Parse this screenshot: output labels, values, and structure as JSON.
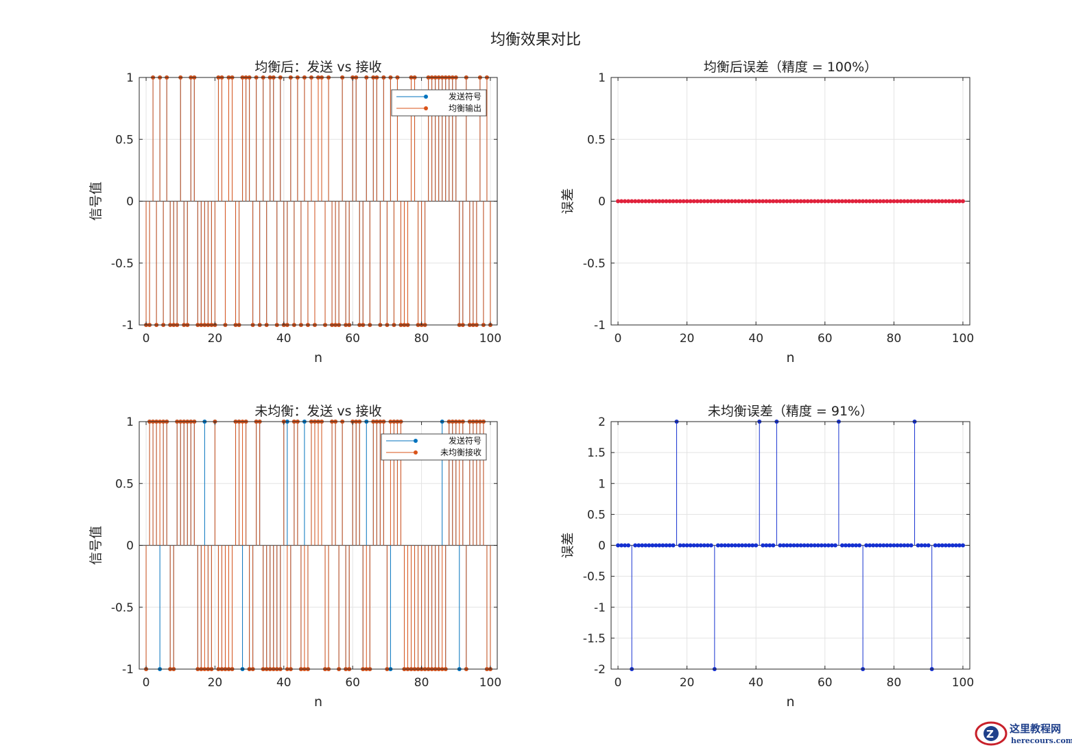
{
  "figure": {
    "suptitle": "均衡效果对比",
    "watermark": {
      "main": "这里教程网",
      "sub": "herecours.com"
    }
  },
  "colors": {
    "series_blue": "#0072BD",
    "series_orange": "#D95319",
    "error_red": "#E0223C",
    "error_blue": "#1530D0",
    "grid": "#e3e3e3",
    "axis": "#262626"
  },
  "chart_data": [
    {
      "id": "tl",
      "type": "stem",
      "title": "均衡后：发送 vs 接收",
      "xlabel": "n",
      "ylabel": "信号值",
      "xlim": [
        -2,
        102
      ],
      "ylim": [
        -1,
        1
      ],
      "xticks": [
        0,
        20,
        40,
        60,
        80,
        100
      ],
      "yticks": [
        -1,
        -0.5,
        0,
        0.5,
        1
      ],
      "grid": true,
      "legend": {
        "position": "top-right",
        "entries": [
          "发送符号",
          "均衡输出"
        ]
      },
      "x": [
        0,
        1,
        2,
        3,
        4,
        5,
        6,
        7,
        8,
        9,
        10,
        11,
        12,
        13,
        14,
        15,
        16,
        17,
        18,
        19,
        20,
        21,
        22,
        23,
        24,
        25,
        26,
        27,
        28,
        29,
        30,
        31,
        32,
        33,
        34,
        35,
        36,
        37,
        38,
        39,
        40,
        41,
        42,
        43,
        44,
        45,
        46,
        47,
        48,
        49,
        50,
        51,
        52,
        53,
        54,
        55,
        56,
        57,
        58,
        59,
        60,
        61,
        62,
        63,
        64,
        65,
        66,
        67,
        68,
        69,
        70,
        71,
        72,
        73,
        74,
        75,
        76,
        77,
        78,
        79,
        80,
        81,
        82,
        83,
        84,
        85,
        86,
        87,
        88,
        89,
        90,
        91,
        92,
        93,
        94,
        95,
        96,
        97,
        98,
        99,
        100
      ],
      "series": [
        {
          "name": "发送符号",
          "color": "#0072BD",
          "values": [
            -1,
            -1,
            1,
            -1,
            1,
            -1,
            1,
            -1,
            -1,
            -1,
            1,
            -1,
            -1,
            1,
            1,
            -1,
            -1,
            -1,
            -1,
            -1,
            -1,
            1,
            1,
            -1,
            1,
            1,
            -1,
            -1,
            1,
            1,
            1,
            -1,
            1,
            -1,
            1,
            -1,
            1,
            1,
            -1,
            1,
            -1,
            -1,
            1,
            -1,
            1,
            -1,
            1,
            -1,
            1,
            -1,
            1,
            1,
            -1,
            1,
            -1,
            -1,
            -1,
            1,
            -1,
            -1,
            1,
            1,
            -1,
            -1,
            1,
            -1,
            1,
            1,
            -1,
            1,
            -1,
            1,
            -1,
            1,
            -1,
            -1,
            -1,
            1,
            1,
            -1,
            -1,
            -1,
            1,
            1,
            1,
            1,
            1,
            1,
            1,
            1,
            1,
            -1,
            -1,
            1,
            -1,
            -1,
            -1,
            1,
            -1,
            1,
            -1
          ]
        },
        {
          "name": "均衡输出",
          "color": "#D95319",
          "values": [
            -1,
            -1,
            1,
            -1,
            1,
            -1,
            1,
            -1,
            -1,
            -1,
            1,
            -1,
            -1,
            1,
            1,
            -1,
            -1,
            -1,
            -1,
            -1,
            -1,
            1,
            1,
            -1,
            1,
            1,
            -1,
            -1,
            1,
            1,
            1,
            -1,
            1,
            -1,
            1,
            -1,
            1,
            1,
            -1,
            1,
            -1,
            -1,
            1,
            -1,
            1,
            -1,
            1,
            -1,
            1,
            -1,
            1,
            1,
            -1,
            1,
            -1,
            -1,
            -1,
            1,
            -1,
            -1,
            1,
            1,
            -1,
            -1,
            1,
            -1,
            1,
            1,
            -1,
            1,
            -1,
            1,
            -1,
            1,
            -1,
            -1,
            -1,
            1,
            1,
            -1,
            -1,
            -1,
            1,
            1,
            1,
            1,
            1,
            1,
            1,
            1,
            1,
            -1,
            -1,
            1,
            -1,
            -1,
            -1,
            1,
            -1,
            1,
            -1
          ]
        }
      ]
    },
    {
      "id": "tr",
      "type": "stem",
      "title": "均衡后误差（精度 = 100%）",
      "xlabel": "n",
      "ylabel": "误差",
      "xlim": [
        -2,
        102
      ],
      "ylim": [
        -1,
        1
      ],
      "xticks": [
        0,
        20,
        40,
        60,
        80,
        100
      ],
      "yticks": [
        -1,
        -0.5,
        0,
        0.5,
        1
      ],
      "grid": true,
      "x": [
        0,
        1,
        2,
        3,
        4,
        5,
        6,
        7,
        8,
        9,
        10,
        11,
        12,
        13,
        14,
        15,
        16,
        17,
        18,
        19,
        20,
        21,
        22,
        23,
        24,
        25,
        26,
        27,
        28,
        29,
        30,
        31,
        32,
        33,
        34,
        35,
        36,
        37,
        38,
        39,
        40,
        41,
        42,
        43,
        44,
        45,
        46,
        47,
        48,
        49,
        50,
        51,
        52,
        53,
        54,
        55,
        56,
        57,
        58,
        59,
        60,
        61,
        62,
        63,
        64,
        65,
        66,
        67,
        68,
        69,
        70,
        71,
        72,
        73,
        74,
        75,
        76,
        77,
        78,
        79,
        80,
        81,
        82,
        83,
        84,
        85,
        86,
        87,
        88,
        89,
        90,
        91,
        92,
        93,
        94,
        95,
        96,
        97,
        98,
        99,
        100
      ],
      "series": [
        {
          "color": "#E0223C",
          "values": [
            0,
            0,
            0,
            0,
            0,
            0,
            0,
            0,
            0,
            0,
            0,
            0,
            0,
            0,
            0,
            0,
            0,
            0,
            0,
            0,
            0,
            0,
            0,
            0,
            0,
            0,
            0,
            0,
            0,
            0,
            0,
            0,
            0,
            0,
            0,
            0,
            0,
            0,
            0,
            0,
            0,
            0,
            0,
            0,
            0,
            0,
            0,
            0,
            0,
            0,
            0,
            0,
            0,
            0,
            0,
            0,
            0,
            0,
            0,
            0,
            0,
            0,
            0,
            0,
            0,
            0,
            0,
            0,
            0,
            0,
            0,
            0,
            0,
            0,
            0,
            0,
            0,
            0,
            0,
            0,
            0,
            0,
            0,
            0,
            0,
            0,
            0,
            0,
            0,
            0,
            0,
            0,
            0,
            0,
            0,
            0,
            0,
            0,
            0,
            0,
            0
          ]
        }
      ]
    },
    {
      "id": "bl",
      "type": "stem",
      "title": "未均衡：发送 vs 接收",
      "xlabel": "n",
      "ylabel": "信号值",
      "xlim": [
        -2,
        102
      ],
      "ylim": [
        -1,
        1
      ],
      "xticks": [
        0,
        20,
        40,
        60,
        80,
        100
      ],
      "yticks": [
        -1,
        -0.5,
        0,
        0.5,
        1
      ],
      "grid": true,
      "legend": {
        "position": "top-right",
        "entries": [
          "发送符号",
          "未均衡接收"
        ]
      },
      "x": [
        0,
        1,
        2,
        3,
        4,
        5,
        6,
        7,
        8,
        9,
        10,
        11,
        12,
        13,
        14,
        15,
        16,
        17,
        18,
        19,
        20,
        21,
        22,
        23,
        24,
        25,
        26,
        27,
        28,
        29,
        30,
        31,
        32,
        33,
        34,
        35,
        36,
        37,
        38,
        39,
        40,
        41,
        42,
        43,
        44,
        45,
        46,
        47,
        48,
        49,
        50,
        51,
        52,
        53,
        54,
        55,
        56,
        57,
        58,
        59,
        60,
        61,
        62,
        63,
        64,
        65,
        66,
        67,
        68,
        69,
        70,
        71,
        72,
        73,
        74,
        75,
        76,
        77,
        78,
        79,
        80,
        81,
        82,
        83,
        84,
        85,
        86,
        87,
        88,
        89,
        90,
        91,
        92,
        93,
        94,
        95,
        96,
        97,
        98,
        99,
        100
      ],
      "series": [
        {
          "name": "发送符号",
          "color": "#0072BD",
          "values": [
            -1,
            1,
            1,
            1,
            -1,
            1,
            1,
            -1,
            -1,
            1,
            1,
            1,
            1,
            1,
            1,
            -1,
            -1,
            1,
            -1,
            -1,
            1,
            -1,
            -1,
            -1,
            -1,
            -1,
            1,
            1,
            -1,
            1,
            -1,
            -1,
            1,
            1,
            -1,
            -1,
            -1,
            -1,
            -1,
            -1,
            1,
            1,
            -1,
            1,
            1,
            -1,
            1,
            -1,
            1,
            1,
            1,
            1,
            -1,
            -1,
            1,
            1,
            -1,
            1,
            -1,
            -1,
            1,
            1,
            1,
            -1,
            1,
            -1,
            1,
            1,
            1,
            1,
            -1,
            -1,
            1,
            1,
            1,
            -1,
            -1,
            -1,
            -1,
            -1,
            -1,
            -1,
            -1,
            -1,
            -1,
            -1,
            1,
            -1,
            1,
            1,
            1,
            -1,
            1,
            -1,
            1,
            1,
            1,
            1,
            1,
            -1,
            -1
          ]
        },
        {
          "name": "未均衡接收",
          "color": "#D95319",
          "values": [
            -1,
            1,
            1,
            1,
            1,
            1,
            1,
            -1,
            -1,
            1,
            1,
            1,
            1,
            1,
            1,
            -1,
            -1,
            -1,
            -1,
            -1,
            1,
            -1,
            -1,
            -1,
            -1,
            -1,
            1,
            1,
            1,
            1,
            -1,
            -1,
            1,
            1,
            -1,
            -1,
            -1,
            -1,
            -1,
            -1,
            1,
            -1,
            -1,
            1,
            1,
            -1,
            -1,
            -1,
            1,
            1,
            1,
            1,
            -1,
            -1,
            1,
            1,
            -1,
            1,
            -1,
            -1,
            1,
            1,
            1,
            -1,
            -1,
            -1,
            1,
            1,
            1,
            1,
            -1,
            1,
            1,
            1,
            1,
            -1,
            -1,
            -1,
            -1,
            -1,
            -1,
            -1,
            -1,
            -1,
            -1,
            -1,
            -1,
            -1,
            1,
            1,
            1,
            1,
            1,
            -1,
            1,
            1,
            1,
            1,
            1,
            -1,
            -1
          ]
        }
      ]
    },
    {
      "id": "br",
      "type": "stem",
      "title": "未均衡误差（精度 = 91%）",
      "xlabel": "n",
      "ylabel": "误差",
      "xlim": [
        -2,
        102
      ],
      "ylim": [
        -2,
        2
      ],
      "xticks": [
        0,
        20,
        40,
        60,
        80,
        100
      ],
      "yticks": [
        -2,
        -1.5,
        -1,
        -0.5,
        0,
        0.5,
        1,
        1.5,
        2
      ],
      "grid": true,
      "x": [
        0,
        1,
        2,
        3,
        4,
        5,
        6,
        7,
        8,
        9,
        10,
        11,
        12,
        13,
        14,
        15,
        16,
        17,
        18,
        19,
        20,
        21,
        22,
        23,
        24,
        25,
        26,
        27,
        28,
        29,
        30,
        31,
        32,
        33,
        34,
        35,
        36,
        37,
        38,
        39,
        40,
        41,
        42,
        43,
        44,
        45,
        46,
        47,
        48,
        49,
        50,
        51,
        52,
        53,
        54,
        55,
        56,
        57,
        58,
        59,
        60,
        61,
        62,
        63,
        64,
        65,
        66,
        67,
        68,
        69,
        70,
        71,
        72,
        73,
        74,
        75,
        76,
        77,
        78,
        79,
        80,
        81,
        82,
        83,
        84,
        85,
        86,
        87,
        88,
        89,
        90,
        91,
        92,
        93,
        94,
        95,
        96,
        97,
        98,
        99,
        100
      ],
      "series": [
        {
          "color": "#1530D0",
          "values": [
            0,
            0,
            0,
            0,
            -2,
            0,
            0,
            0,
            0,
            0,
            0,
            0,
            0,
            0,
            0,
            0,
            0,
            2,
            0,
            0,
            0,
            0,
            0,
            0,
            0,
            0,
            0,
            0,
            -2,
            0,
            0,
            0,
            0,
            0,
            0,
            0,
            0,
            0,
            0,
            0,
            0,
            2,
            0,
            0,
            0,
            0,
            2,
            0,
            0,
            0,
            0,
            0,
            0,
            0,
            0,
            0,
            0,
            0,
            0,
            0,
            0,
            0,
            0,
            0,
            2,
            0,
            0,
            0,
            0,
            0,
            0,
            -2,
            0,
            0,
            0,
            0,
            0,
            0,
            0,
            0,
            0,
            0,
            0,
            0,
            0,
            0,
            2,
            0,
            0,
            0,
            0,
            -2,
            0,
            0,
            0,
            0,
            0,
            0,
            0,
            0,
            0
          ]
        }
      ]
    }
  ]
}
